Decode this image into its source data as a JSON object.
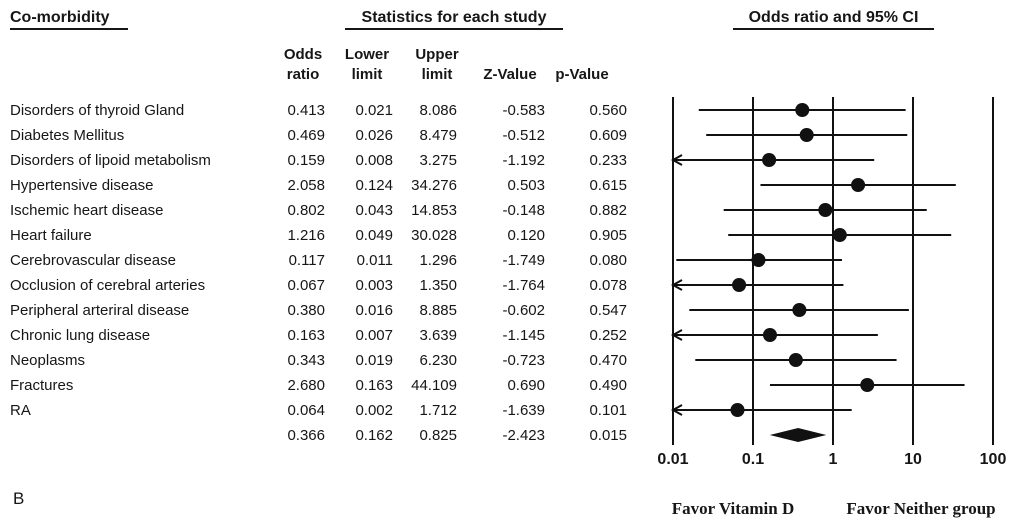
{
  "panel_label": "B",
  "table": {
    "title": "Co-morbidity",
    "stats_title": "Statistics for each study",
    "columns": [
      {
        "line1": "Odds",
        "line2": "ratio"
      },
      {
        "line1": "Lower",
        "line2": "limit"
      },
      {
        "line1": "Upper",
        "line2": "limit"
      },
      {
        "line1": "",
        "line2": "Z-Value"
      },
      {
        "line1": "",
        "line2": "p-Value"
      }
    ]
  },
  "chart_data": {
    "type": "forest",
    "title": "Odds ratio and 95% CI",
    "x_scale": "log10",
    "x_range": [
      0.01,
      100
    ],
    "x_ticks": [
      "0.01",
      "0.1",
      "1",
      "10",
      "100"
    ],
    "footer_left": "Favor Vitamin D",
    "footer_right": "Favor Neither group",
    "marker_color": "#111111",
    "rows": [
      {
        "label": "Disorders of thyroid Gland",
        "odds_ratio": 0.413,
        "lower": 0.021,
        "upper": 8.086,
        "z": -0.583,
        "p": 0.56,
        "overall": false
      },
      {
        "label": "Diabetes Mellitus",
        "odds_ratio": 0.469,
        "lower": 0.026,
        "upper": 8.479,
        "z": -0.512,
        "p": 0.609,
        "overall": false
      },
      {
        "label": "Disorders of lipoid metabolism",
        "odds_ratio": 0.159,
        "lower": 0.008,
        "upper": 3.275,
        "z": -1.192,
        "p": 0.233,
        "overall": false
      },
      {
        "label": "Hypertensive disease",
        "odds_ratio": 2.058,
        "lower": 0.124,
        "upper": 34.276,
        "z": 0.503,
        "p": 0.615,
        "overall": false
      },
      {
        "label": "Ischemic heart disease",
        "odds_ratio": 0.802,
        "lower": 0.043,
        "upper": 14.853,
        "z": -0.148,
        "p": 0.882,
        "overall": false
      },
      {
        "label": "Heart failure",
        "odds_ratio": 1.216,
        "lower": 0.049,
        "upper": 30.028,
        "z": 0.12,
        "p": 0.905,
        "overall": false
      },
      {
        "label": "Cerebrovascular disease",
        "odds_ratio": 0.117,
        "lower": 0.011,
        "upper": 1.296,
        "z": -1.749,
        "p": 0.08,
        "overall": false
      },
      {
        "label": "Occlusion of cerebral arteries",
        "odds_ratio": 0.067,
        "lower": 0.003,
        "upper": 1.35,
        "z": -1.764,
        "p": 0.078,
        "overall": false
      },
      {
        "label": "Peripheral arteriral disease",
        "odds_ratio": 0.38,
        "lower": 0.016,
        "upper": 8.885,
        "z": -0.602,
        "p": 0.547,
        "overall": false
      },
      {
        "label": "Chronic lung disease",
        "odds_ratio": 0.163,
        "lower": 0.007,
        "upper": 3.639,
        "z": -1.145,
        "p": 0.252,
        "overall": false
      },
      {
        "label": "Neoplasms",
        "odds_ratio": 0.343,
        "lower": 0.019,
        "upper": 6.23,
        "z": -0.723,
        "p": 0.47,
        "overall": false
      },
      {
        "label": "Fractures",
        "odds_ratio": 2.68,
        "lower": 0.163,
        "upper": 44.109,
        "z": 0.69,
        "p": 0.49,
        "overall": false
      },
      {
        "label": "RA",
        "odds_ratio": 0.064,
        "lower": 0.002,
        "upper": 1.712,
        "z": -1.639,
        "p": 0.101,
        "overall": false
      },
      {
        "label": "",
        "odds_ratio": 0.366,
        "lower": 0.162,
        "upper": 0.825,
        "z": -2.423,
        "p": 0.015,
        "overall": true
      }
    ]
  }
}
